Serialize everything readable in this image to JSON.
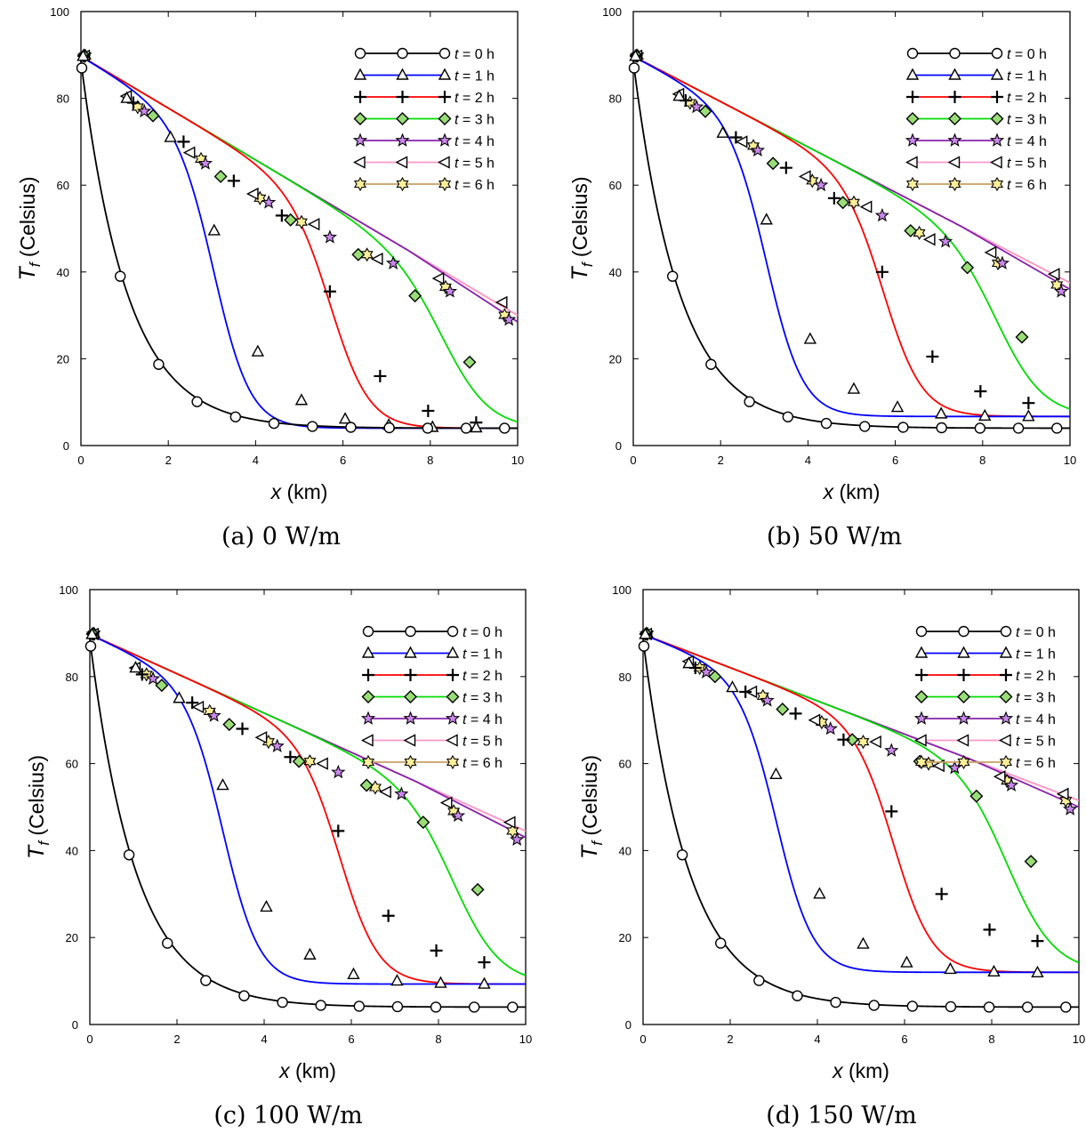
{
  "colors": {
    "t0": "#000000",
    "t1": "#0000ff",
    "t2": "#ff0000",
    "t3": "#00dd00",
    "t4": "#8822aa",
    "t5": "#ff99cc",
    "t6": "#c8a060",
    "diamond_fill": "#99dd77",
    "star4_fill": "#cc88ee",
    "star6_fill": "#ffee99"
  },
  "chart_data": [
    {
      "type": "line",
      "caption": "(a) 0 W/m",
      "xlabel": "x (km)",
      "ylabel": "Tf (Celsius)",
      "xlim": [
        0,
        10
      ],
      "ylim": [
        0,
        100
      ],
      "xticks": [
        "0",
        "2",
        "4",
        "6",
        "8",
        "10"
      ],
      "yticks": [
        "0",
        "20",
        "40",
        "60",
        "80",
        "100"
      ],
      "legend_position": "top-right",
      "params": {
        "base": 4,
        "hi_end": 30
      },
      "series": [
        {
          "name": "t = 0 h",
          "marker": "circle",
          "x": [
            0.02,
            0.9,
            1.78,
            2.66,
            3.54,
            4.42,
            5.3,
            6.18,
            7.06,
            7.94,
            8.82,
            9.7
          ],
          "y": [
            87,
            39,
            18.7,
            10.1,
            6.6,
            5.1,
            4.4,
            4.2,
            4.1,
            4.0,
            4.0,
            4.0
          ]
        },
        {
          "name": "t = 1 h",
          "marker": "triangle",
          "x": [
            0.05,
            1.05,
            2.05,
            3.05,
            4.05,
            5.05,
            6.05,
            7.05,
            8.05,
            9.05
          ],
          "y": [
            89.7,
            80,
            71,
            49.5,
            21.6,
            10.4,
            6.1,
            4.7,
            4.2,
            4.1
          ]
        },
        {
          "name": "t = 2 h",
          "marker": "plus",
          "x": [
            0.06,
            1.2,
            2.35,
            3.5,
            4.6,
            5.7,
            6.85,
            7.95,
            9.05
          ],
          "y": [
            89.8,
            79,
            70,
            61,
            53,
            35.5,
            16,
            8,
            5.3
          ]
        },
        {
          "name": "t = 3 h",
          "marker": "diamond",
          "x": [
            0.07,
            1.65,
            3.2,
            4.8,
            6.35,
            7.65,
            8.9
          ],
          "y": [
            89.8,
            76,
            62,
            52,
            44,
            34.5,
            19.2
          ]
        },
        {
          "name": "t = 4 h",
          "marker": "star",
          "x": [
            0.08,
            1.45,
            2.85,
            4.3,
            5.7,
            7.15,
            8.45,
            9.8
          ],
          "y": [
            89.8,
            77,
            65,
            56,
            48,
            42,
            35.5,
            29
          ]
        },
        {
          "name": "t = 5 h",
          "marker": "tri-left",
          "x": [
            0.09,
            1.05,
            2.5,
            3.95,
            5.35,
            6.8,
            8.2,
            9.65
          ],
          "y": [
            89.8,
            80.5,
            67.5,
            58,
            51,
            43,
            38.5,
            33
          ]
        },
        {
          "name": "t = 6 h",
          "marker": "star6",
          "x": [
            0.1,
            1.3,
            2.75,
            4.1,
            5.05,
            6.55,
            8.35,
            9.7
          ],
          "y": [
            89.8,
            78,
            66,
            57,
            51.5,
            44,
            36.5,
            30
          ]
        }
      ]
    },
    {
      "type": "line",
      "caption": "(b) 50 W/m",
      "xlabel": "x (km)",
      "ylabel": "Tf (Celsius)",
      "xlim": [
        0,
        10
      ],
      "ylim": [
        0,
        100
      ],
      "xticks": [
        "0",
        "2",
        "4",
        "6",
        "8",
        "10"
      ],
      "yticks": [
        "0",
        "20",
        "40",
        "60",
        "80",
        "100"
      ],
      "legend_position": "top-right",
      "params": {
        "base": 6.7,
        "hi_end": 37.5
      },
      "series": [
        {
          "name": "t = 0 h",
          "marker": "circle",
          "x": [
            0.02,
            0.9,
            1.78,
            2.66,
            3.54,
            4.42,
            5.3,
            6.18,
            7.06,
            7.94,
            8.82,
            9.7
          ],
          "y": [
            87,
            39,
            18.7,
            10.1,
            6.6,
            5.1,
            4.4,
            4.2,
            4.1,
            4.0,
            4.0,
            4.0
          ]
        },
        {
          "name": "t = 1 h",
          "marker": "triangle",
          "x": [
            0.05,
            1.05,
            2.05,
            3.05,
            4.05,
            5.05,
            6.05,
            7.05,
            8.05,
            9.05
          ],
          "y": [
            89.7,
            80.5,
            72,
            52,
            24.5,
            13,
            8.8,
            7.3,
            6.8,
            6.7
          ]
        },
        {
          "name": "t = 2 h",
          "marker": "plus",
          "x": [
            0.06,
            1.2,
            2.35,
            3.5,
            4.6,
            5.7,
            6.85,
            7.95,
            9.05
          ],
          "y": [
            89.8,
            79.5,
            71,
            64,
            57,
            40,
            20.5,
            12.5,
            9.8
          ]
        },
        {
          "name": "t = 3 h",
          "marker": "diamond",
          "x": [
            0.07,
            1.65,
            3.2,
            4.8,
            6.35,
            7.65,
            8.9
          ],
          "y": [
            89.8,
            77,
            65,
            56,
            49.5,
            41,
            25
          ]
        },
        {
          "name": "t = 4 h",
          "marker": "star",
          "x": [
            0.08,
            1.45,
            2.85,
            4.3,
            5.7,
            7.15,
            8.45,
            9.8
          ],
          "y": [
            89.8,
            78,
            68,
            60,
            53,
            47,
            42,
            35.5
          ]
        },
        {
          "name": "t = 5 h",
          "marker": "tri-left",
          "x": [
            0.09,
            1.05,
            2.5,
            3.95,
            5.35,
            6.8,
            8.2,
            9.65
          ],
          "y": [
            89.8,
            81,
            70,
            62,
            55,
            47.5,
            44.5,
            39.5
          ]
        },
        {
          "name": "t = 6 h",
          "marker": "star6",
          "x": [
            0.1,
            1.3,
            2.75,
            4.1,
            5.05,
            6.55,
            8.35,
            9.7
          ],
          "y": [
            89.8,
            79,
            69,
            61,
            56,
            49,
            42,
            37
          ]
        }
      ]
    },
    {
      "type": "line",
      "caption": "(c) 100 W/m",
      "xlabel": "x (km)",
      "ylabel": "Tf (Celsius)",
      "xlim": [
        0,
        10
      ],
      "ylim": [
        0,
        100
      ],
      "xticks": [
        "0",
        "2",
        "4",
        "6",
        "8",
        "10"
      ],
      "yticks": [
        "0",
        "20",
        "40",
        "60",
        "80",
        "100"
      ],
      "legend_position": "top-right",
      "params": {
        "base": 9.3,
        "hi_end": 44.5
      },
      "series": [
        {
          "name": "t = 0 h",
          "marker": "circle",
          "x": [
            0.02,
            0.9,
            1.78,
            2.66,
            3.54,
            4.42,
            5.3,
            6.18,
            7.06,
            7.94,
            8.82,
            9.7
          ],
          "y": [
            87,
            39,
            18.7,
            10.1,
            6.6,
            5.1,
            4.4,
            4.2,
            4.1,
            4.0,
            4.0,
            4.0
          ]
        },
        {
          "name": "t = 1 h",
          "marker": "triangle",
          "x": [
            0.05,
            1.05,
            2.05,
            3.05,
            4.05,
            5.05,
            6.05,
            7.05,
            8.05,
            9.05
          ],
          "y": [
            89.7,
            82,
            75,
            55,
            27,
            16,
            11.5,
            10,
            9.5,
            9.3
          ]
        },
        {
          "name": "t = 2 h",
          "marker": "plus",
          "x": [
            0.06,
            1.2,
            2.35,
            3.5,
            4.6,
            5.7,
            6.85,
            7.95,
            9.05
          ],
          "y": [
            89.8,
            80.5,
            74,
            68,
            61.5,
            44.5,
            25,
            17,
            14.3
          ]
        },
        {
          "name": "t = 3 h",
          "marker": "diamond",
          "x": [
            0.07,
            1.65,
            3.2,
            4.8,
            6.35,
            7.65,
            8.9
          ],
          "y": [
            89.8,
            78,
            69,
            60.5,
            55,
            46.5,
            31
          ]
        },
        {
          "name": "t = 4 h",
          "marker": "star",
          "x": [
            0.08,
            1.45,
            2.85,
            4.3,
            5.7,
            7.15,
            8.45,
            9.8
          ],
          "y": [
            89.8,
            79.5,
            71,
            64,
            58,
            53,
            48,
            42.5
          ]
        },
        {
          "name": "t = 5 h",
          "marker": "tri-left",
          "x": [
            0.09,
            1.05,
            2.5,
            3.95,
            5.35,
            6.8,
            8.2,
            9.65
          ],
          "y": [
            89.8,
            82,
            73,
            66,
            60,
            53.5,
            51,
            46.5
          ]
        },
        {
          "name": "t = 6 h",
          "marker": "star6",
          "x": [
            0.1,
            1.3,
            2.75,
            4.1,
            5.05,
            6.55,
            8.35,
            9.7
          ],
          "y": [
            89.8,
            80.5,
            72,
            65,
            60.5,
            54.5,
            49,
            44.5
          ]
        }
      ]
    },
    {
      "type": "line",
      "caption": "(d) 150 W/m",
      "xlabel": "x (km)",
      "ylabel": "Tf (Celsius)",
      "xlim": [
        0,
        10
      ],
      "ylim": [
        0,
        100
      ],
      "xticks": [
        "0",
        "2",
        "4",
        "6",
        "8",
        "10"
      ],
      "yticks": [
        "0",
        "20",
        "40",
        "60",
        "80",
        "100"
      ],
      "legend_position": "top-right",
      "params": {
        "base": 12,
        "hi_end": 51.5
      },
      "series": [
        {
          "name": "t = 0 h",
          "marker": "circle",
          "x": [
            0.02,
            0.9,
            1.78,
            2.66,
            3.54,
            4.42,
            5.3,
            6.18,
            7.06,
            7.94,
            8.82,
            9.7
          ],
          "y": [
            87,
            39,
            18.7,
            10.1,
            6.6,
            5.1,
            4.4,
            4.2,
            4.1,
            4.0,
            4.0,
            4.0
          ]
        },
        {
          "name": "t = 1 h",
          "marker": "triangle",
          "x": [
            0.05,
            1.05,
            2.05,
            3.05,
            4.05,
            5.05,
            6.05,
            7.05,
            8.05,
            9.05
          ],
          "y": [
            89.7,
            83,
            77.5,
            57.5,
            30,
            18.5,
            14.2,
            12.7,
            12.1,
            11.9
          ]
        },
        {
          "name": "t = 2 h",
          "marker": "plus",
          "x": [
            0.06,
            1.2,
            2.35,
            3.5,
            4.6,
            5.7,
            6.85,
            7.95,
            9.05
          ],
          "y": [
            89.8,
            82,
            76.5,
            71.5,
            65.5,
            49,
            30,
            21.8,
            19.2
          ]
        },
        {
          "name": "t = 3 h",
          "marker": "diamond",
          "x": [
            0.07,
            1.65,
            3.2,
            4.8,
            6.35,
            7.65,
            8.9
          ],
          "y": [
            89.8,
            80,
            72.5,
            65.5,
            60.5,
            52.5,
            37.5
          ]
        },
        {
          "name": "t = 4 h",
          "marker": "star",
          "x": [
            0.08,
            1.45,
            2.85,
            4.3,
            5.7,
            7.15,
            8.45,
            9.8
          ],
          "y": [
            89.8,
            81,
            74.5,
            68,
            63,
            59,
            55,
            49.5
          ]
        },
        {
          "name": "t = 5 h",
          "marker": "tri-left",
          "x": [
            0.09,
            1.05,
            2.5,
            3.95,
            5.35,
            6.8,
            8.2,
            9.65
          ],
          "y": [
            89.8,
            83.5,
            76.5,
            70,
            65,
            59.5,
            57,
            53
          ]
        },
        {
          "name": "t = 6 h",
          "marker": "star6",
          "x": [
            0.1,
            1.3,
            2.75,
            4.1,
            5.05,
            6.55,
            8.35,
            9.7
          ],
          "y": [
            89.8,
            82,
            75.5,
            69.5,
            65,
            60,
            56,
            51.5
          ]
        }
      ]
    }
  ]
}
